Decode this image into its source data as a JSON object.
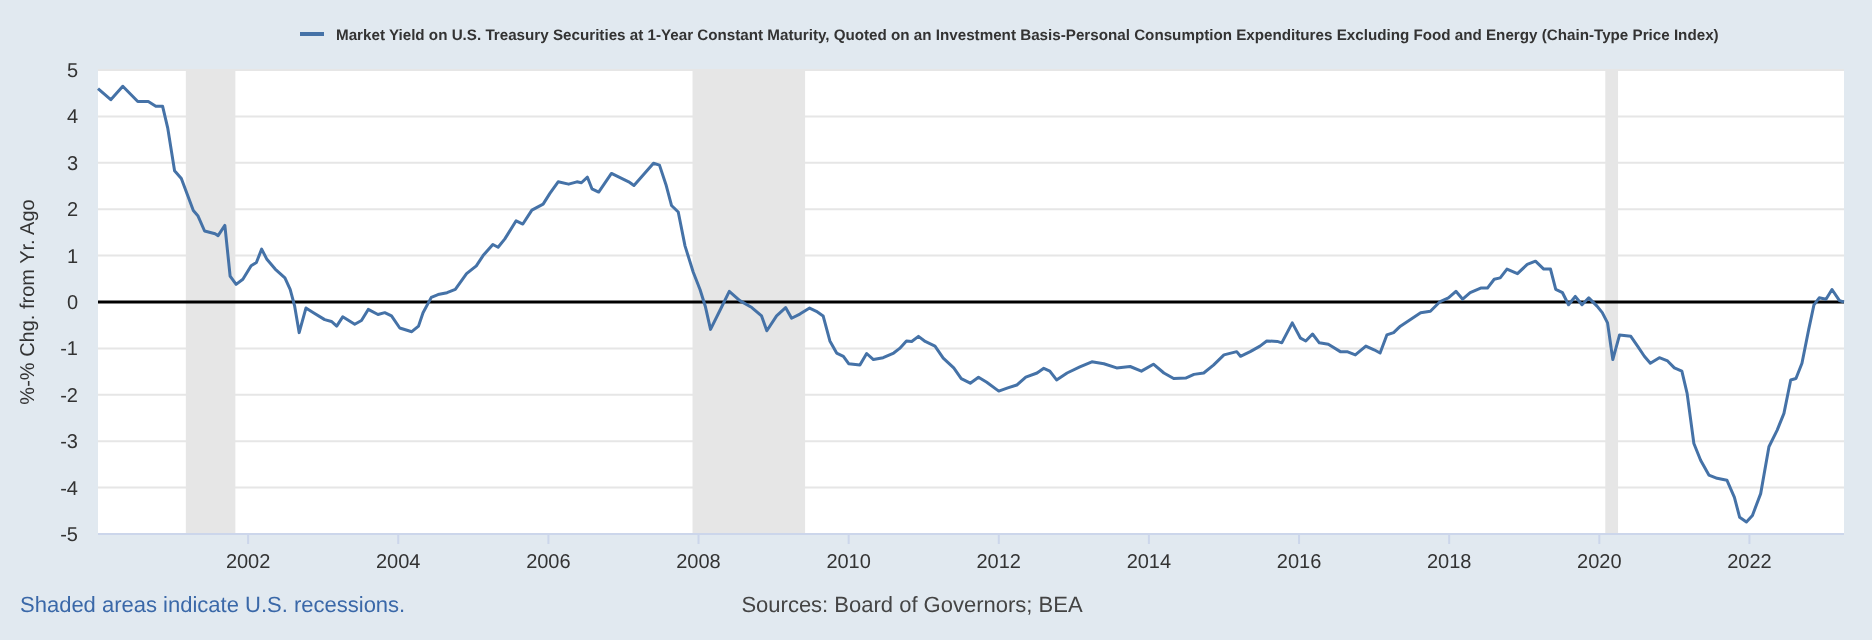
{
  "chart_data": {
    "type": "line",
    "ylabel": "%-% Chg. from Yr. Ago",
    "legend": "top",
    "grid": "y",
    "xlim": [
      2000,
      2023.26
    ],
    "xticks": [
      2002,
      2004,
      2006,
      2008,
      2010,
      2012,
      2014,
      2016,
      2018,
      2020,
      2022
    ],
    "ylim": [
      -5,
      5
    ],
    "yticks": [
      -5,
      -4,
      -3,
      -2,
      -1,
      0,
      1,
      2,
      3,
      4,
      5
    ],
    "bands": [
      {
        "axis": "x",
        "from": 2001.17,
        "to": 2001.83,
        "color": "#e6e6e6"
      },
      {
        "axis": "x",
        "from": 2007.92,
        "to": 2009.42,
        "color": "#e6e6e6"
      },
      {
        "axis": "x",
        "from": 2020.08,
        "to": 2020.25,
        "color": "#e6e6e6"
      }
    ],
    "ref_lines": [
      {
        "axis": "y",
        "value": 0,
        "color": "#000000"
      }
    ],
    "annotations": [
      "Shaded areas indicate U.S. recessions.",
      "Sources: Board of Governors; BEA"
    ],
    "series": [
      {
        "name": "Market Yield on U.S. Treasury Securities at 1-Year Constant Maturity, Quoted on an Investment Basis-Personal Consumption Expenditures Excluding Food and Energy (Chain-Type Price Index)",
        "color": "#4572a7",
        "x": [
          2000.0,
          2000.17,
          2000.33,
          2000.53,
          2000.67,
          2000.77,
          2000.86,
          2000.93,
          2001.02,
          2001.11,
          2001.27,
          2001.33,
          2001.42,
          2001.56,
          2001.6,
          2001.69,
          2001.76,
          2001.84,
          2001.93,
          2002.04,
          2002.11,
          2002.18,
          2002.25,
          2002.36,
          2002.49,
          2002.56,
          2002.62,
          2002.68,
          2002.77,
          2002.87,
          2003.02,
          2003.11,
          2003.18,
          2003.26,
          2003.42,
          2003.51,
          2003.6,
          2003.73,
          2003.82,
          2003.91,
          2004.02,
          2004.18,
          2004.27,
          2004.33,
          2004.44,
          2004.53,
          2004.65,
          2004.76,
          2004.91,
          2005.04,
          2005.13,
          2005.26,
          2005.33,
          2005.42,
          2005.57,
          2005.66,
          2005.78,
          2005.93,
          2006.02,
          2006.13,
          2006.27,
          2006.38,
          2006.44,
          2006.52,
          2006.58,
          2006.67,
          2006.84,
          2007.07,
          2007.14,
          2007.26,
          2007.4,
          2007.48,
          2007.57,
          2007.64,
          2007.73,
          2007.82,
          2007.93,
          2008.02,
          2008.09,
          2008.16,
          2008.28,
          2008.41,
          2008.55,
          2008.71,
          2008.84,
          2008.91,
          2009.04,
          2009.16,
          2009.24,
          2009.35,
          2009.48,
          2009.57,
          2009.66,
          2009.75,
          2009.84,
          2009.93,
          2010.0,
          2010.15,
          2010.24,
          2010.33,
          2010.46,
          2010.6,
          2010.68,
          2010.77,
          2010.84,
          2010.93,
          2011.02,
          2011.15,
          2011.26,
          2011.4,
          2011.5,
          2011.62,
          2011.73,
          2011.84,
          2012.0,
          2012.12,
          2012.24,
          2012.36,
          2012.51,
          2012.6,
          2012.68,
          2012.77,
          2012.91,
          2013.08,
          2013.24,
          2013.4,
          2013.57,
          2013.75,
          2013.9,
          2014.06,
          2014.2,
          2014.33,
          2014.49,
          2014.6,
          2014.73,
          2014.86,
          2015.0,
          2015.17,
          2015.22,
          2015.35,
          2015.48,
          2015.57,
          2015.71,
          2015.77,
          2015.91,
          2016.02,
          2016.09,
          2016.18,
          2016.27,
          2016.39,
          2016.55,
          2016.64,
          2016.75,
          2016.89,
          2017.0,
          2017.08,
          2017.17,
          2017.26,
          2017.35,
          2017.48,
          2017.62,
          2017.75,
          2017.88,
          2017.99,
          2018.09,
          2018.18,
          2018.28,
          2018.42,
          2018.51,
          2018.6,
          2018.68,
          2018.77,
          2018.91,
          2019.04,
          2019.15,
          2019.26,
          2019.35,
          2019.42,
          2019.51,
          2019.59,
          2019.68,
          2019.77,
          2019.86,
          2019.97,
          2020.04,
          2020.11,
          2020.18,
          2020.27,
          2020.42,
          2020.51,
          2020.6,
          2020.68,
          2020.8,
          2020.91,
          2021.0,
          2021.1,
          2021.17,
          2021.26,
          2021.35,
          2021.46,
          2021.57,
          2021.7,
          2021.8,
          2021.87,
          2021.96,
          2022.04,
          2022.15,
          2022.26,
          2022.37,
          2022.46,
          2022.55,
          2022.62,
          2022.7,
          2022.79,
          2022.86,
          2022.93,
          2023.02,
          2023.1,
          2023.2,
          2023.26
        ],
        "values": [
          4.6,
          4.36,
          4.65,
          4.32,
          4.32,
          4.22,
          4.22,
          3.74,
          2.83,
          2.66,
          1.97,
          1.86,
          1.53,
          1.47,
          1.43,
          1.65,
          0.56,
          0.38,
          0.49,
          0.78,
          0.85,
          1.14,
          0.92,
          0.71,
          0.52,
          0.27,
          -0.09,
          -0.66,
          -0.13,
          -0.23,
          -0.38,
          -0.42,
          -0.52,
          -0.32,
          -0.48,
          -0.4,
          -0.16,
          -0.27,
          -0.23,
          -0.3,
          -0.56,
          -0.64,
          -0.52,
          -0.23,
          0.1,
          0.16,
          0.2,
          0.27,
          0.61,
          0.78,
          1.0,
          1.24,
          1.18,
          1.36,
          1.75,
          1.68,
          1.98,
          2.11,
          2.34,
          2.59,
          2.54,
          2.59,
          2.57,
          2.69,
          2.44,
          2.37,
          2.77,
          2.59,
          2.51,
          2.73,
          2.99,
          2.95,
          2.51,
          2.08,
          1.94,
          1.21,
          0.64,
          0.27,
          -0.09,
          -0.59,
          -0.2,
          0.23,
          0.03,
          -0.12,
          -0.3,
          -0.62,
          -0.3,
          -0.12,
          -0.35,
          -0.26,
          -0.13,
          -0.2,
          -0.3,
          -0.84,
          -1.1,
          -1.17,
          -1.33,
          -1.36,
          -1.11,
          -1.24,
          -1.2,
          -1.1,
          -1.0,
          -0.84,
          -0.85,
          -0.74,
          -0.85,
          -0.95,
          -1.21,
          -1.42,
          -1.65,
          -1.75,
          -1.62,
          -1.73,
          -1.92,
          -1.85,
          -1.79,
          -1.62,
          -1.53,
          -1.43,
          -1.49,
          -1.68,
          -1.53,
          -1.4,
          -1.29,
          -1.33,
          -1.42,
          -1.39,
          -1.49,
          -1.34,
          -1.53,
          -1.65,
          -1.64,
          -1.56,
          -1.53,
          -1.36,
          -1.14,
          -1.07,
          -1.17,
          -1.07,
          -0.95,
          -0.84,
          -0.85,
          -0.88,
          -0.45,
          -0.78,
          -0.84,
          -0.69,
          -0.88,
          -0.91,
          -1.07,
          -1.07,
          -1.14,
          -0.95,
          -1.03,
          -1.1,
          -0.71,
          -0.66,
          -0.52,
          -0.38,
          -0.23,
          -0.2,
          0.01,
          0.09,
          0.23,
          0.06,
          0.2,
          0.3,
          0.3,
          0.49,
          0.52,
          0.71,
          0.61,
          0.81,
          0.88,
          0.71,
          0.71,
          0.27,
          0.2,
          -0.06,
          0.12,
          -0.06,
          0.09,
          -0.09,
          -0.23,
          -0.45,
          -1.24,
          -0.71,
          -0.74,
          -0.95,
          -1.17,
          -1.32,
          -1.2,
          -1.27,
          -1.42,
          -1.49,
          -1.97,
          -3.05,
          -3.41,
          -3.73,
          -3.8,
          -3.84,
          -4.21,
          -4.64,
          -4.74,
          -4.6,
          -4.13,
          -3.12,
          -2.76,
          -2.4,
          -1.68,
          -1.65,
          -1.32,
          -0.59,
          -0.06,
          0.09,
          0.06,
          0.27,
          0.03,
          0.0
        ]
      }
    ]
  }
}
